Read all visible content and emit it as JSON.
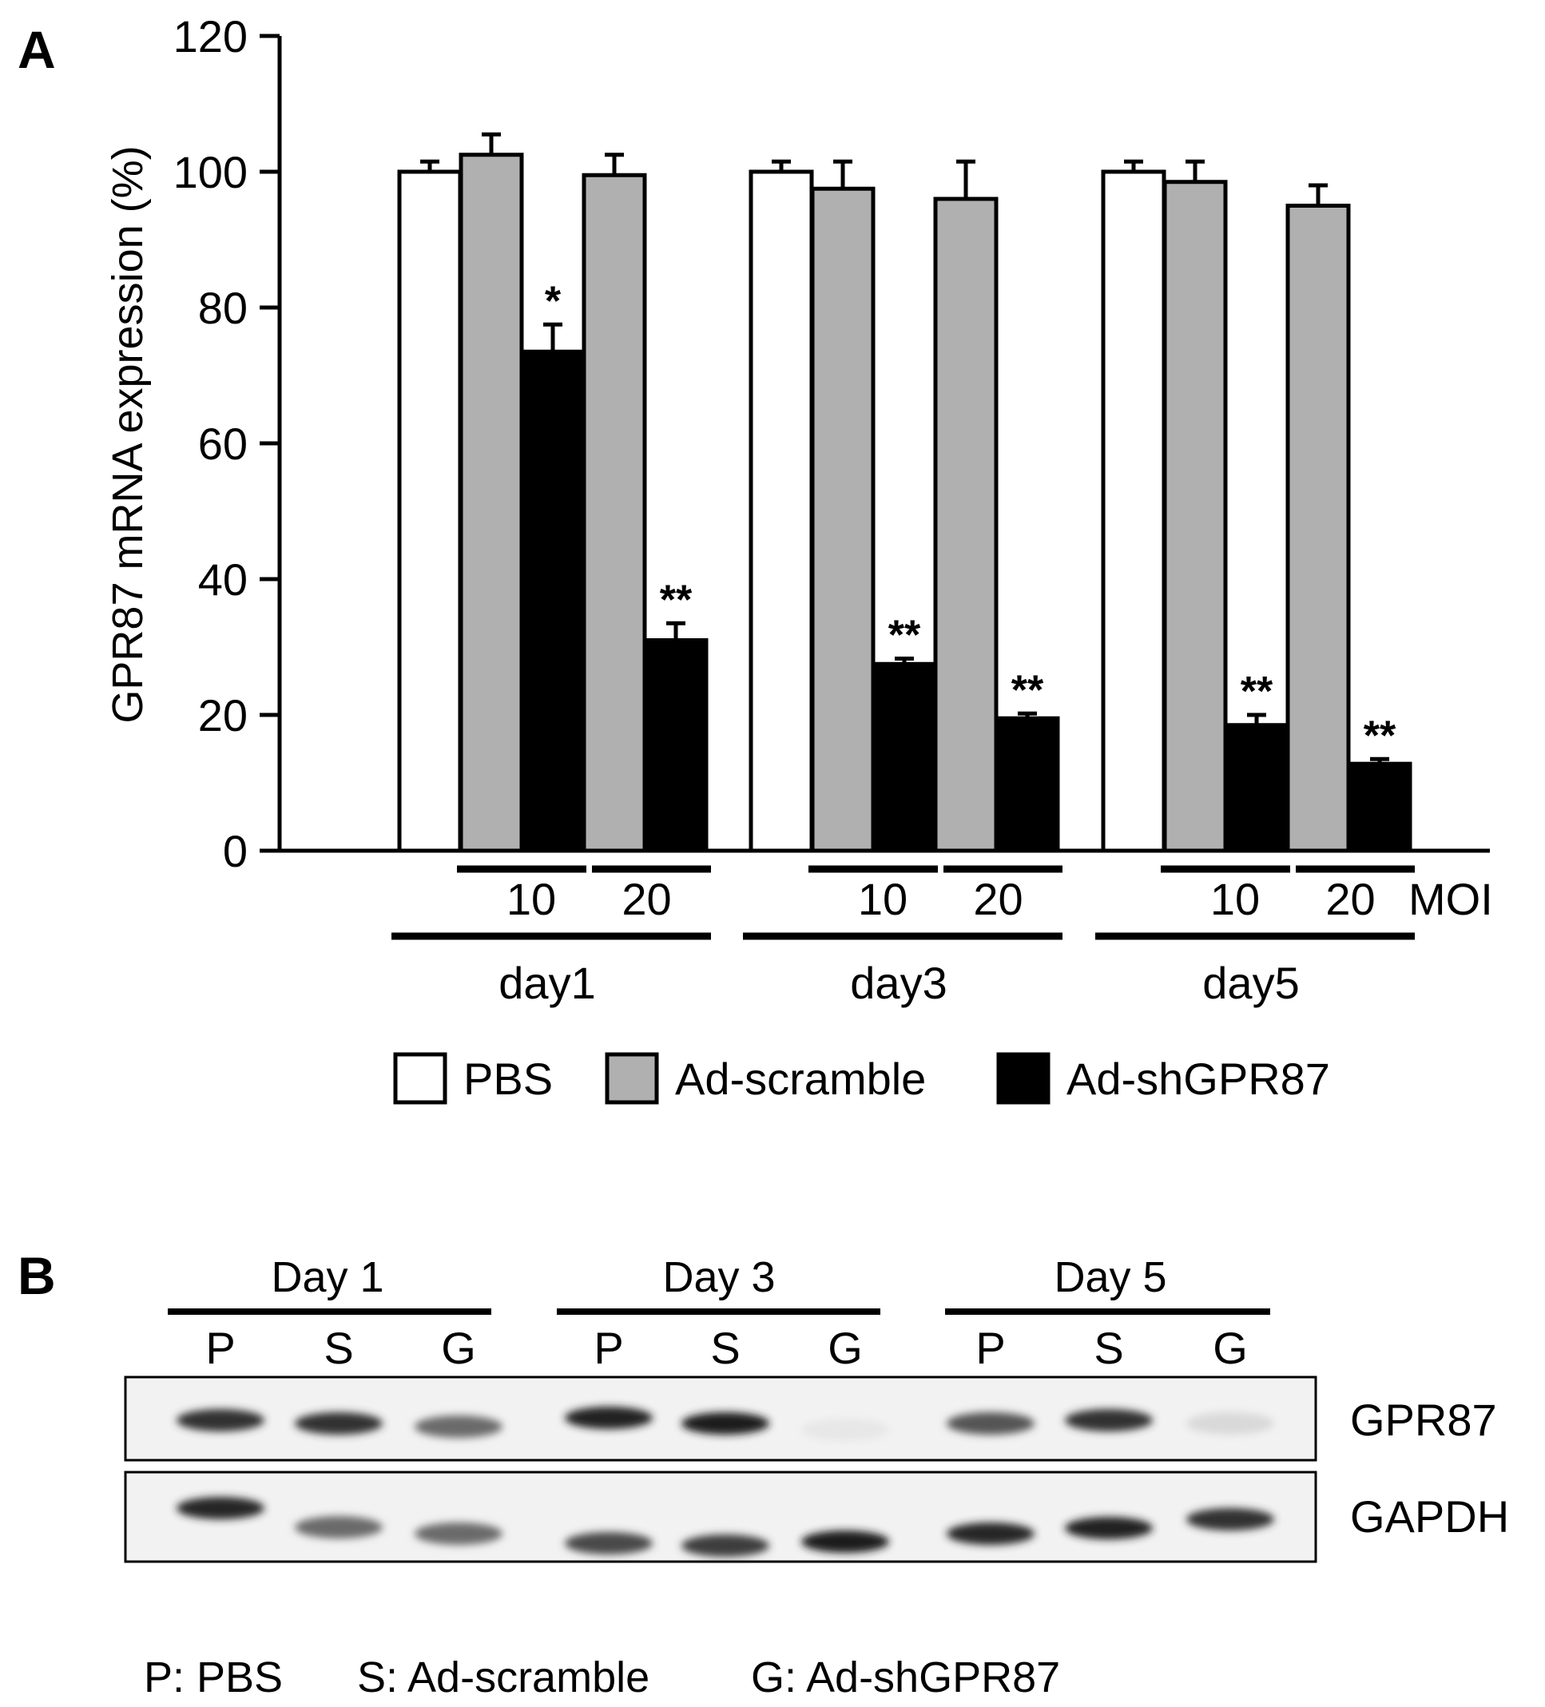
{
  "panel_a": {
    "label": "A"
  },
  "panel_b": {
    "label": "B",
    "days": [
      "Day 1",
      "Day 3",
      "Day 5"
    ],
    "lanes": [
      "P",
      "S",
      "G"
    ],
    "blot_labels": [
      "GPR87",
      "GAPDH"
    ],
    "bands": {
      "GPR87": [
        0.85,
        0.85,
        0.6,
        0.92,
        0.95,
        0.06,
        0.7,
        0.85,
        0.12
      ],
      "GAPDH": [
        0.9,
        0.6,
        0.6,
        0.75,
        0.8,
        0.95,
        0.9,
        0.92,
        0.85
      ]
    },
    "footer": [
      "P: PBS",
      "S: Ad-scramble",
      "G: Ad-shGPR87"
    ]
  },
  "chart_data": {
    "type": "bar",
    "ylabel": "GPR87 mRNA expression (%)",
    "ylim": [
      0,
      120
    ],
    "yticks": [
      0,
      20,
      40,
      60,
      80,
      100,
      120
    ],
    "groups": [
      "day1",
      "day3",
      "day5"
    ],
    "moi_label": "MOI",
    "moi_values": [
      "10",
      "20"
    ],
    "legend": [
      {
        "name": "PBS",
        "color": "#ffffff"
      },
      {
        "name": "Ad-scramble",
        "color": "#b0b0b0"
      },
      {
        "name": "Ad-shGPR87",
        "color": "#000000"
      }
    ],
    "bars": [
      {
        "group": "day1",
        "series": "PBS",
        "moi": "",
        "value": 100,
        "error": 1.5,
        "sig": ""
      },
      {
        "group": "day1",
        "series": "Ad-scramble",
        "moi": "10",
        "value": 102.5,
        "error": 3,
        "sig": ""
      },
      {
        "group": "day1",
        "series": "Ad-shGPR87",
        "moi": "10",
        "value": 73.5,
        "error": 4,
        "sig": "*"
      },
      {
        "group": "day1",
        "series": "Ad-scramble",
        "moi": "20",
        "value": 99.5,
        "error": 3,
        "sig": ""
      },
      {
        "group": "day1",
        "series": "Ad-shGPR87",
        "moi": "20",
        "value": 31,
        "error": 2.5,
        "sig": "**"
      },
      {
        "group": "day3",
        "series": "PBS",
        "moi": "",
        "value": 100,
        "error": 1.5,
        "sig": ""
      },
      {
        "group": "day3",
        "series": "Ad-scramble",
        "moi": "10",
        "value": 97.5,
        "error": 4,
        "sig": ""
      },
      {
        "group": "day3",
        "series": "Ad-shGPR87",
        "moi": "10",
        "value": 27.5,
        "error": 0.8,
        "sig": "**"
      },
      {
        "group": "day3",
        "series": "Ad-scramble",
        "moi": "20",
        "value": 96,
        "error": 5.5,
        "sig": ""
      },
      {
        "group": "day3",
        "series": "Ad-shGPR87",
        "moi": "20",
        "value": 19.5,
        "error": 0.7,
        "sig": "**"
      },
      {
        "group": "day5",
        "series": "PBS",
        "moi": "",
        "value": 100,
        "error": 1.5,
        "sig": ""
      },
      {
        "group": "day5",
        "series": "Ad-scramble",
        "moi": "10",
        "value": 98.5,
        "error": 3,
        "sig": ""
      },
      {
        "group": "day5",
        "series": "Ad-shGPR87",
        "moi": "10",
        "value": 18.5,
        "error": 1.5,
        "sig": "**"
      },
      {
        "group": "day5",
        "series": "Ad-scramble",
        "moi": "20",
        "value": 95,
        "error": 3,
        "sig": ""
      },
      {
        "group": "day5",
        "series": "Ad-shGPR87",
        "moi": "20",
        "value": 12.8,
        "error": 0.7,
        "sig": "**"
      }
    ]
  }
}
